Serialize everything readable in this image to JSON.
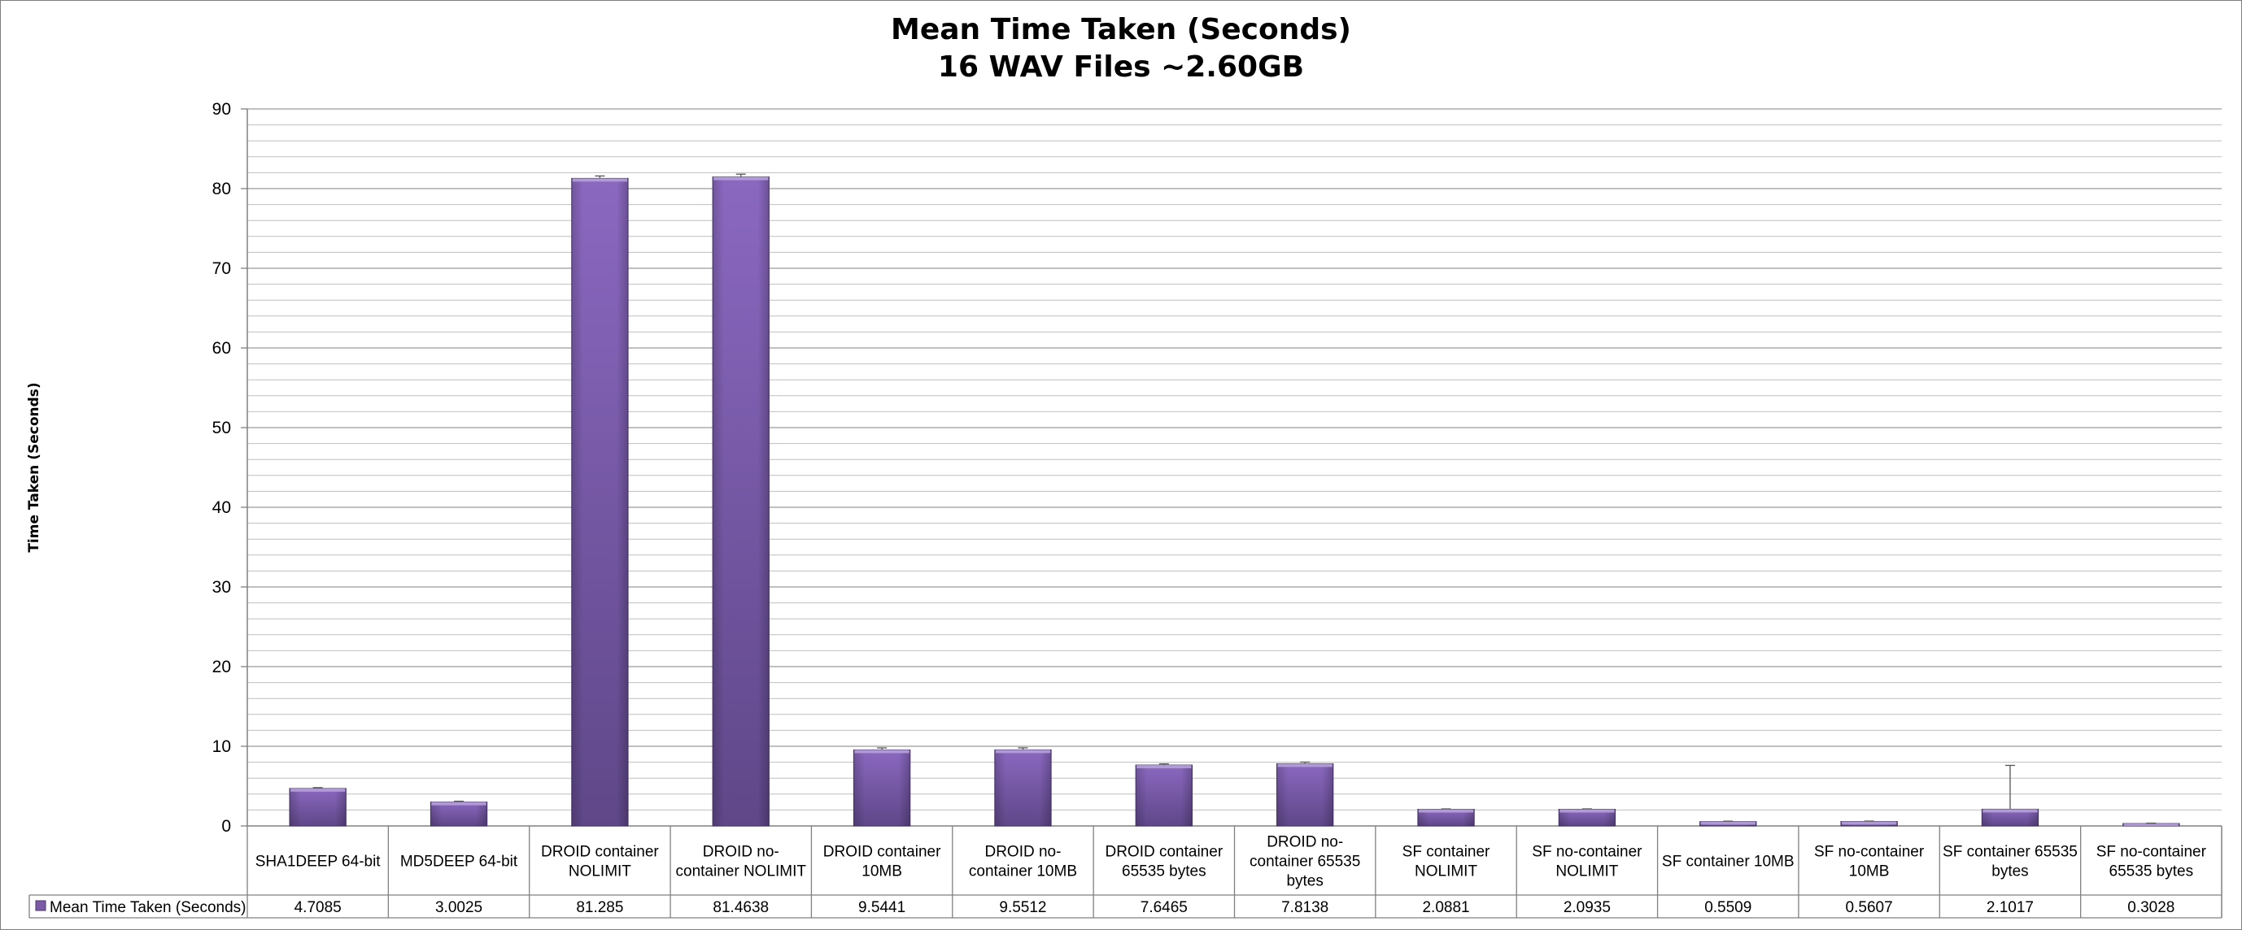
{
  "chart_data": {
    "type": "bar",
    "title": "Mean Time Taken (Seconds)",
    "subtitle": "16 WAV Files ~2.60GB",
    "ylabel": "Time Taken (Seconds)",
    "xlabel": "",
    "ylim": [
      0,
      90
    ],
    "yticks": [
      0,
      10,
      20,
      30,
      40,
      50,
      60,
      70,
      80,
      90
    ],
    "grid": true,
    "legend_placement": "bottom (data table)",
    "categories": [
      "SHA1DEEP 64-bit",
      "MD5DEEP 64-bit",
      "DROID container NOLIMIT",
      "DROID no-container NOLIMIT",
      "DROID container 10MB",
      "DROID no-container 10MB",
      "DROID container 65535 bytes",
      "DROID no-container 65535 bytes",
      "SF container NOLIMIT",
      "SF no-container NOLIMIT",
      "SF container 10MB",
      "SF no-container 10MB",
      "SF container 65535 bytes",
      "SF no-container 65535 bytes"
    ],
    "category_lines": [
      [
        "SHA1DEEP 64-bit"
      ],
      [
        "MD5DEEP 64-bit"
      ],
      [
        "DROID container",
        "NOLIMIT"
      ],
      [
        "DROID no-",
        "container NOLIMIT"
      ],
      [
        "DROID container",
        "10MB"
      ],
      [
        "DROID no-",
        "container 10MB"
      ],
      [
        "DROID container",
        "65535 bytes"
      ],
      [
        "DROID no-",
        "container 65535",
        "bytes"
      ],
      [
        "SF container",
        "NOLIMIT"
      ],
      [
        "SF no-container",
        "NOLIMIT"
      ],
      [
        "SF container 10MB"
      ],
      [
        "SF no-container",
        "10MB"
      ],
      [
        "SF container 65535",
        "bytes"
      ],
      [
        "SF no-container",
        "65535 bytes"
      ]
    ],
    "series": [
      {
        "name": "Mean Time Taken (Seconds)",
        "values": [
          4.7085,
          3.0025,
          81.285,
          81.4638,
          9.5441,
          9.5512,
          7.6465,
          7.8138,
          2.0881,
          2.0935,
          0.5509,
          0.5607,
          2.1017,
          0.3028
        ],
        "value_labels": [
          "4.7085",
          "3.0025",
          "81.285",
          "81.4638",
          "9.5441",
          "9.5512",
          "7.6465",
          "7.8138",
          "2.0881",
          "2.0935",
          "0.5509",
          "0.5607",
          "2.1017",
          "0.3028"
        ],
        "error_plus": [
          0.1,
          0.1,
          0.3,
          0.35,
          0.25,
          0.25,
          0.15,
          0.2,
          0.05,
          0.05,
          0.05,
          0.05,
          5.5,
          0.05
        ],
        "color": "#7b5aa6"
      }
    ],
    "colors": {
      "bar_top": "#8a68c0",
      "bar_bottom": "#5f4788",
      "grid": "#bfbfbf",
      "axis": "#808080"
    }
  }
}
